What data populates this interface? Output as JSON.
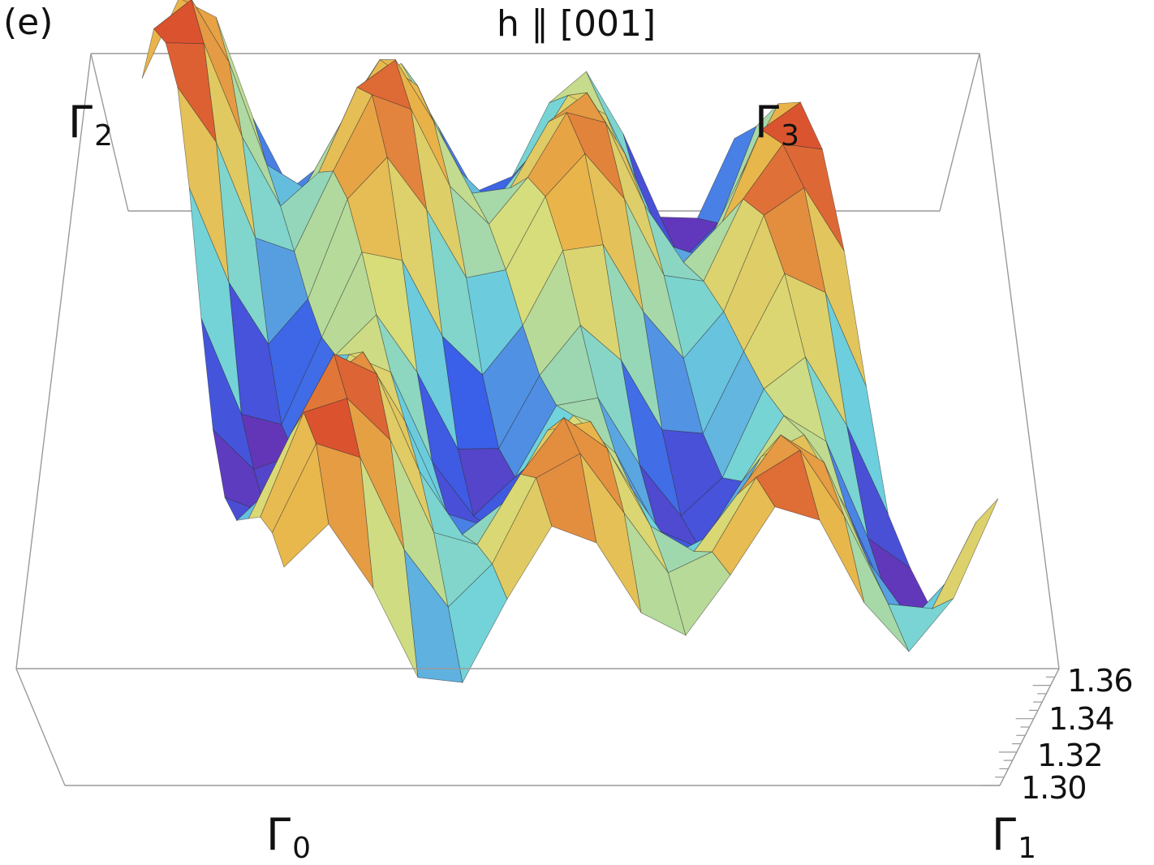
{
  "panel_label": "(e)",
  "title": "h ∥ [001]",
  "corner_labels": {
    "gamma0": {
      "symbol": "Γ",
      "sub": "0"
    },
    "gamma1": {
      "symbol": "Γ",
      "sub": "1"
    },
    "gamma2": {
      "symbol": "Γ",
      "sub": "2"
    },
    "gamma3": {
      "symbol": "Γ",
      "sub": "3"
    }
  },
  "chart_data": {
    "type": "surface3d",
    "title": "h ∥ [001]",
    "zlim": [
      1.3,
      1.37
    ],
    "z_ticks": [
      "1.30",
      "1.32",
      "1.34",
      "1.36"
    ],
    "z_tick_values": [
      1.3,
      1.32,
      1.34,
      1.36
    ],
    "corners": [
      "Γ0",
      "Γ1",
      "Γ2",
      "Γ3"
    ],
    "description_grid": {
      "columns": 16,
      "rows": 12,
      "ridges_along_Γ0_Γ1": 6,
      "peak_z": 1.365,
      "trough_z": 1.3
    },
    "colormap": [
      "#6a2fb0",
      "#3a5fe8",
      "#6fd3dc",
      "#d8dd7a",
      "#e9b54a",
      "#d8402a"
    ],
    "grid": true
  }
}
